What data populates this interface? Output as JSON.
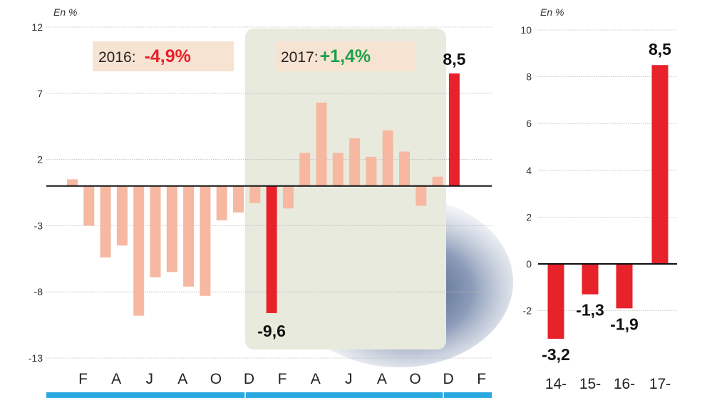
{
  "chart_data": [
    {
      "type": "bar",
      "unit_label": "En %",
      "ylim": [
        -13,
        12
      ],
      "yticks": [
        12,
        7,
        2,
        -3,
        -8,
        -13
      ],
      "grid": true,
      "tick_labels": [
        "F",
        "A",
        "J",
        "A",
        "O",
        "D",
        "F",
        "A",
        "J",
        "A",
        "O",
        "D",
        "F"
      ],
      "values": [
        0.5,
        -3.0,
        -5.4,
        -4.5,
        -9.8,
        -6.9,
        -6.5,
        -7.6,
        -8.3,
        -2.6,
        -2.0,
        -1.3,
        -9.6,
        -1.7,
        2.5,
        6.3,
        2.5,
        3.6,
        2.2,
        4.2,
        2.6,
        -1.5,
        0.7,
        8.5
      ],
      "highlight": [
        12,
        23
      ],
      "data_labels": {
        "12": "-9,6",
        "23": "8,5"
      },
      "annotations": [
        {
          "label": "2016:",
          "value": "-4,9%",
          "color": "#e8222a"
        },
        {
          "label": "2017:",
          "value": "+1,4%",
          "color": "#1ea14b"
        }
      ],
      "colors": {
        "normal": "#f6b8a0",
        "highlight": "#e8222a"
      }
    },
    {
      "type": "bar",
      "unit_label": "En %",
      "ylim": [
        -4,
        10
      ],
      "yticks": [
        10,
        8,
        6,
        4,
        2,
        0,
        -2
      ],
      "grid": true,
      "categories": [
        "14-",
        "15-",
        "16-",
        "17-"
      ],
      "values": [
        -3.2,
        -1.3,
        -1.9,
        8.5
      ],
      "data_labels": [
        "-3,2",
        "-1,3",
        "-1,9",
        "8,5"
      ],
      "colors": {
        "bar": "#e8222a"
      }
    }
  ]
}
